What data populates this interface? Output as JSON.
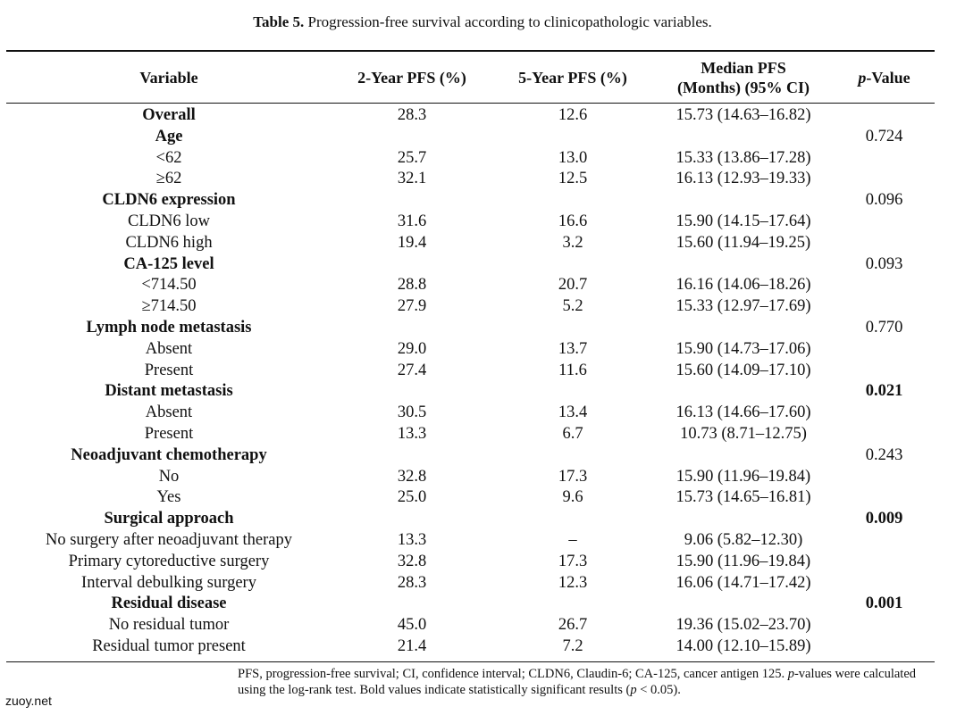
{
  "caption": {
    "label": "Table 5.",
    "text": " Progression-free survival according to clinicopathologic variables."
  },
  "columns": {
    "variable": "Variable",
    "pfs2": "2-Year PFS (%)",
    "pfs5": "5-Year PFS (%)",
    "median_line1": "Median PFS",
    "median_line2": "(Months) (95% CI)",
    "pvalue_italic": "p",
    "pvalue_rest": "-Value"
  },
  "rows": [
    {
      "variable": "Overall",
      "pfs2": "28.3",
      "pfs5": "12.6",
      "median": "15.73 (14.63–16.82)",
      "p": "",
      "group": true,
      "sig": false
    },
    {
      "variable": "Age",
      "pfs2": "",
      "pfs5": "",
      "median": "",
      "p": "0.724",
      "group": true,
      "sig": false
    },
    {
      "variable": "<62",
      "pfs2": "25.7",
      "pfs5": "13.0",
      "median": "15.33 (13.86–17.28)",
      "p": "",
      "group": false,
      "sig": false
    },
    {
      "variable": "≥62",
      "pfs2": "32.1",
      "pfs5": "12.5",
      "median": "16.13 (12.93–19.33)",
      "p": "",
      "group": false,
      "sig": false
    },
    {
      "variable": "CLDN6 expression",
      "pfs2": "",
      "pfs5": "",
      "median": "",
      "p": "0.096",
      "group": true,
      "sig": false
    },
    {
      "variable": "CLDN6 low",
      "pfs2": "31.6",
      "pfs5": "16.6",
      "median": "15.90 (14.15–17.64)",
      "p": "",
      "group": false,
      "sig": false
    },
    {
      "variable": "CLDN6 high",
      "pfs2": "19.4",
      "pfs5": "3.2",
      "median": "15.60 (11.94–19.25)",
      "p": "",
      "group": false,
      "sig": false
    },
    {
      "variable": "CA-125 level",
      "pfs2": "",
      "pfs5": "",
      "median": "",
      "p": "0.093",
      "group": true,
      "sig": false
    },
    {
      "variable": "<714.50",
      "pfs2": "28.8",
      "pfs5": "20.7",
      "median": "16.16 (14.06–18.26)",
      "p": "",
      "group": false,
      "sig": false
    },
    {
      "variable": "≥714.50",
      "pfs2": "27.9",
      "pfs5": "5.2",
      "median": "15.33 (12.97–17.69)",
      "p": "",
      "group": false,
      "sig": false
    },
    {
      "variable": "Lymph node metastasis",
      "pfs2": "",
      "pfs5": "",
      "median": "",
      "p": "0.770",
      "group": true,
      "sig": false
    },
    {
      "variable": "Absent",
      "pfs2": "29.0",
      "pfs5": "13.7",
      "median": "15.90 (14.73–17.06)",
      "p": "",
      "group": false,
      "sig": false
    },
    {
      "variable": "Present",
      "pfs2": "27.4",
      "pfs5": "11.6",
      "median": "15.60 (14.09–17.10)",
      "p": "",
      "group": false,
      "sig": false
    },
    {
      "variable": "Distant metastasis",
      "pfs2": "",
      "pfs5": "",
      "median": "",
      "p": "0.021",
      "group": true,
      "sig": true
    },
    {
      "variable": "Absent",
      "pfs2": "30.5",
      "pfs5": "13.4",
      "median": "16.13 (14.66–17.60)",
      "p": "",
      "group": false,
      "sig": false
    },
    {
      "variable": "Present",
      "pfs2": "13.3",
      "pfs5": "6.7",
      "median": "10.73 (8.71–12.75)",
      "p": "",
      "group": false,
      "sig": false
    },
    {
      "variable": "Neoadjuvant chemotherapy",
      "pfs2": "",
      "pfs5": "",
      "median": "",
      "p": "0.243",
      "group": true,
      "sig": false
    },
    {
      "variable": "No",
      "pfs2": "32.8",
      "pfs5": "17.3",
      "median": "15.90 (11.96–19.84)",
      "p": "",
      "group": false,
      "sig": false
    },
    {
      "variable": "Yes",
      "pfs2": "25.0",
      "pfs5": "9.6",
      "median": "15.73 (14.65–16.81)",
      "p": "",
      "group": false,
      "sig": false
    },
    {
      "variable": "Surgical approach",
      "pfs2": "",
      "pfs5": "",
      "median": "",
      "p": "0.009",
      "group": true,
      "sig": true
    },
    {
      "variable": "No surgery after neoadjuvant therapy",
      "pfs2": "13.3",
      "pfs5": "–",
      "median": "9.06 (5.82–12.30)",
      "p": "",
      "group": false,
      "sig": false
    },
    {
      "variable": "Primary cytoreductive surgery",
      "pfs2": "32.8",
      "pfs5": "17.3",
      "median": "15.90 (11.96–19.84)",
      "p": "",
      "group": false,
      "sig": false
    },
    {
      "variable": "Interval debulking surgery",
      "pfs2": "28.3",
      "pfs5": "12.3",
      "median": "16.06 (14.71–17.42)",
      "p": "",
      "group": false,
      "sig": false
    },
    {
      "variable": "Residual disease",
      "pfs2": "",
      "pfs5": "",
      "median": "",
      "p": "0.001",
      "group": true,
      "sig": true
    },
    {
      "variable": "No residual tumor",
      "pfs2": "45.0",
      "pfs5": "26.7",
      "median": "19.36 (15.02–23.70)",
      "p": "",
      "group": false,
      "sig": false
    },
    {
      "variable": "Residual tumor present",
      "pfs2": "21.4",
      "pfs5": "7.2",
      "median": "14.00 (12.10–15.89)",
      "p": "",
      "group": false,
      "sig": false
    }
  ],
  "footnote": {
    "part1": "PFS, progression-free survival; CI, confidence interval; CLDN6, Claudin-6; CA-125, cancer antigen 125. ",
    "p1": "p",
    "part2": "-values were calculated using the log-rank test. Bold values indicate statistically significant results (",
    "p2": "p",
    "part3": " < 0.05)."
  },
  "watermark": "zuoy.net"
}
